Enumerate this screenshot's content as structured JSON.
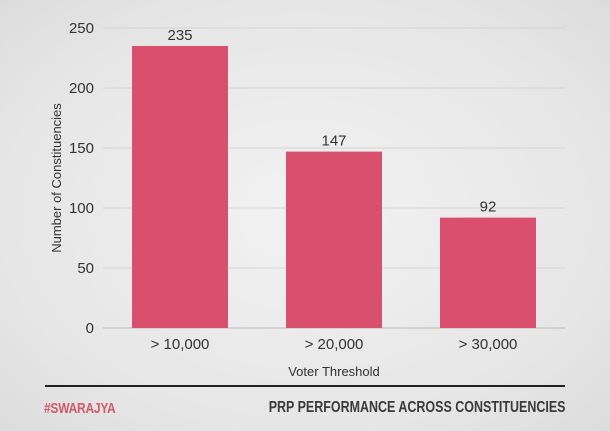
{
  "chart_data": {
    "type": "bar",
    "categories": [
      "> 10,000",
      "> 20,000",
      "> 30,000"
    ],
    "values": [
      235,
      147,
      92
    ],
    "xlabel": "Voter Threshold",
    "ylabel": "Number of Constituencies",
    "ylim": [
      0,
      250
    ],
    "yticks": [
      0,
      50,
      100,
      150,
      200,
      250
    ],
    "grid": true,
    "data_labels": true,
    "bar_color": "#d94f6e"
  },
  "footer": {
    "brand": "#SWARAJYA",
    "title": "PRP PERFORMANCE ACROSS CONSTITUENCIES"
  }
}
